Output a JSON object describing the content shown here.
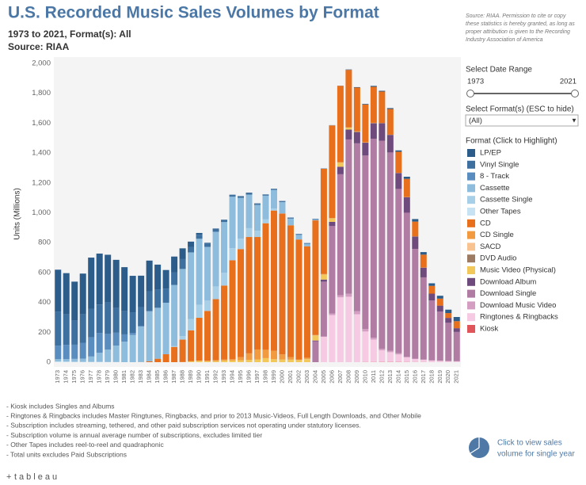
{
  "chart_data": {
    "type": "bar",
    "stacked": true,
    "title": "U.S. Recorded Music Sales Volumes by Format",
    "subtitle": [
      "1973 to 2021, Format(s): All",
      "Source: RIAA"
    ],
    "source_note": [
      "Source: RIAA. Permission to cite or copy",
      "these statistics is hereby granted, as long as",
      "proper attribution is given to the Recording",
      "Industry Association of America"
    ],
    "ylabel": "Units (Millions)",
    "ylim": [
      0,
      2000
    ],
    "yticks": [
      0,
      200,
      400,
      600,
      800,
      {
        "value": 1000,
        "label": "1,000"
      },
      {
        "value": 1200,
        "label": "1,200"
      },
      {
        "value": 1400,
        "label": "1,400"
      },
      {
        "value": 1600,
        "label": "1,600"
      },
      {
        "value": 1800,
        "label": "1,800"
      },
      {
        "value": 2000,
        "label": "2,000"
      }
    ],
    "grid": false,
    "categories": [
      "1973",
      "1974",
      "1975",
      "1976",
      "1977",
      "1978",
      "1979",
      "1980",
      "1981",
      "1982",
      "1983",
      "1984",
      "1985",
      "1986",
      "1987",
      "1988",
      "1989",
      "1990",
      "1991",
      "1992",
      "1993",
      "1994",
      "1995",
      "1996",
      "1997",
      "1998",
      "1999",
      "2000",
      "2001",
      "2002",
      "2003",
      "2004",
      "2005",
      "2006",
      "2007",
      "2008",
      "2009",
      "2010",
      "2011",
      "2012",
      "2013",
      "2014",
      "2015",
      "2016",
      "2017",
      "2018",
      "2019",
      "2020",
      "2021"
    ],
    "legend_title": "Format (Click to Highlight)",
    "series": [
      {
        "name": "LP/EP",
        "color": "#2b5c8a",
        "values": [
          280,
          276,
          258,
          273,
          344,
          341,
          318,
          323,
          295,
          244,
          210,
          205,
          167,
          125,
          107,
          72,
          35,
          12,
          5,
          2,
          1,
          2,
          2,
          3,
          3,
          3,
          3,
          2,
          2,
          2,
          1,
          1,
          1,
          1,
          1,
          3,
          3,
          4,
          6,
          5,
          6,
          9,
          14,
          17,
          17,
          17,
          19,
          23,
          28
        ]
      },
      {
        "name": "Vinyl Single",
        "color": "#3d6f9f",
        "values": [
          228,
          204,
          164,
          190,
          190,
          190,
          212,
          165,
          155,
          138,
          125,
          131,
          121,
          94,
          83,
          66,
          37,
          27,
          22,
          20,
          15,
          11,
          10,
          10,
          7,
          5,
          5,
          5,
          5,
          4,
          4,
          4,
          0,
          0,
          0,
          0,
          0,
          0,
          0,
          0,
          0,
          0,
          0,
          0,
          0,
          0,
          0,
          0,
          0
        ]
      },
      {
        "name": "8 - Track",
        "color": "#5a8dbf",
        "values": [
          91,
          96,
          95,
          106,
          128,
          133,
          105,
          86,
          49,
          14,
          6,
          6,
          3,
          0,
          0,
          0,
          0,
          0,
          0,
          0,
          0,
          0,
          0,
          0,
          0,
          0,
          0,
          0,
          0,
          0,
          0,
          0,
          0,
          0,
          0,
          0,
          0,
          0,
          0,
          0,
          0,
          0,
          0,
          0,
          0,
          0,
          0,
          0,
          0
        ]
      },
      {
        "name": "Cassette",
        "color": "#8ebcdc",
        "values": [
          15,
          16,
          19,
          22,
          36,
          61,
          83,
          110,
          137,
          182,
          237,
          332,
          339,
          345,
          410,
          450,
          446,
          442,
          360,
          366,
          340,
          345,
          273,
          225,
          173,
          159,
          124,
          76,
          45,
          31,
          17,
          5,
          2,
          1,
          0,
          0,
          0,
          0,
          0,
          0,
          0,
          0,
          0,
          0,
          0,
          0,
          0,
          0,
          0
        ]
      },
      {
        "name": "Cassette Single",
        "color": "#a8cfe8",
        "values": [
          0,
          0,
          0,
          0,
          0,
          0,
          0,
          0,
          0,
          0,
          0,
          0,
          0,
          0,
          5,
          23,
          76,
          87,
          69,
          85,
          85,
          81,
          70,
          59,
          42,
          26,
          14,
          1,
          0,
          0,
          0,
          0,
          0,
          0,
          0,
          0,
          0,
          0,
          0,
          0,
          0,
          0,
          0,
          0,
          0,
          0,
          0,
          0,
          0
        ]
      },
      {
        "name": "Other Tapes",
        "color": "#c7e2f2",
        "values": [
          5,
          4,
          3,
          2,
          2,
          2,
          1,
          1,
          0,
          0,
          0,
          0,
          0,
          0,
          0,
          0,
          0,
          0,
          0,
          0,
          0,
          0,
          0,
          0,
          0,
          0,
          0,
          0,
          0,
          0,
          0,
          0,
          0,
          0,
          0,
          0,
          0,
          0,
          0,
          0,
          0,
          0,
          0,
          0,
          0,
          0,
          0,
          0,
          0
        ]
      },
      {
        "name": "CD",
        "color": "#e8701c",
        "values": [
          0,
          0,
          0,
          0,
          0,
          0,
          0,
          0,
          0,
          0,
          1,
          6,
          23,
          53,
          102,
          150,
          207,
          287,
          333,
          408,
          495,
          662,
          723,
          779,
          753,
          847,
          939,
          943,
          882,
          803,
          746,
          767,
          705,
          620,
          511,
          385,
          293,
          253,
          241,
          211,
          172,
          141,
          122,
          99,
          86,
          52,
          47,
          32,
          47
        ]
      },
      {
        "name": "CD Single",
        "color": "#f29a3f",
        "values": [
          0,
          0,
          0,
          0,
          0,
          0,
          0,
          0,
          0,
          0,
          0,
          0,
          0,
          0,
          0,
          1,
          0,
          1,
          4,
          7,
          7,
          9,
          21,
          43,
          67,
          56,
          56,
          34,
          17,
          4,
          8,
          3,
          3,
          2,
          3,
          1,
          1,
          1,
          1,
          0,
          0,
          0,
          0,
          0,
          0,
          0,
          0,
          0,
          0
        ]
      },
      {
        "name": "SACD",
        "color": "#f8c391",
        "values": [
          0,
          0,
          0,
          0,
          0,
          0,
          0,
          0,
          0,
          0,
          0,
          0,
          0,
          0,
          0,
          0,
          0,
          0,
          0,
          0,
          0,
          0,
          0,
          0,
          0,
          0,
          0,
          0,
          0,
          0,
          1.3,
          0.8,
          0.5,
          0.3,
          0.2,
          0.2,
          0.1,
          0,
          0,
          0,
          0,
          0,
          0,
          0,
          0,
          0,
          0,
          0,
          0
        ]
      },
      {
        "name": "DVD Audio",
        "color": "#9c7b62",
        "values": [
          0,
          0,
          0,
          0,
          0,
          0,
          0,
          0,
          0,
          0,
          0,
          0,
          0,
          0,
          0,
          0,
          0,
          0,
          0,
          0,
          0,
          0,
          0,
          0,
          0,
          0,
          0,
          0,
          0.3,
          0.4,
          0.4,
          0.4,
          0.5,
          0.4,
          0.4,
          0.2,
          0.1,
          0,
          0,
          0,
          0,
          0,
          0,
          0,
          0,
          0,
          0,
          0,
          0
        ]
      },
      {
        "name": "Music Video (Physical)",
        "color": "#f2c85b",
        "values": [
          0,
          0,
          0,
          0,
          0,
          0,
          0,
          0,
          0,
          0,
          0,
          0,
          0,
          0,
          0,
          0,
          6,
          9,
          6,
          7,
          11,
          11,
          13,
          16,
          18,
          27,
          20,
          18,
          17,
          14,
          20,
          33,
          33,
          23,
          27,
          13,
          3,
          2,
          2,
          1,
          1,
          1,
          1,
          1,
          1,
          0,
          0,
          0,
          0
        ]
      },
      {
        "name": "Download Album",
        "color": "#6f4a7d",
        "values": [
          0,
          0,
          0,
          0,
          0,
          0,
          0,
          0,
          0,
          0,
          0,
          0,
          0,
          0,
          0,
          0,
          0,
          0,
          0,
          0,
          0,
          0,
          0,
          0,
          0,
          0,
          0,
          0,
          0,
          0,
          0,
          5,
          14,
          28,
          50,
          66,
          76,
          86,
          104,
          117,
          118,
          107,
          104,
          83,
          65,
          46,
          39,
          33,
          25
        ]
      },
      {
        "name": "Download Single",
        "color": "#b07ca3",
        "values": [
          0,
          0,
          0,
          0,
          0,
          0,
          0,
          0,
          0,
          0,
          0,
          0,
          0,
          0,
          0,
          0,
          0,
          0,
          0,
          0,
          0,
          0,
          0,
          0,
          0,
          0,
          0,
          0,
          0,
          0,
          0,
          140,
          367,
          586,
          810,
          1033,
          1124,
          1162,
          1332,
          1393,
          1327,
          1100,
          964,
          734,
          550,
          401,
          330,
          256,
          196
        ]
      },
      {
        "name": "Download Music Video",
        "color": "#d49dc2",
        "values": [
          0,
          0,
          0,
          0,
          0,
          0,
          0,
          0,
          0,
          0,
          0,
          0,
          0,
          0,
          0,
          0,
          0,
          0,
          0,
          0,
          0,
          0,
          0,
          0,
          0,
          0,
          0,
          0,
          0,
          0,
          0,
          0,
          2,
          10,
          14,
          20,
          20,
          16,
          12,
          10,
          10,
          8,
          5,
          3,
          2,
          1,
          1,
          1,
          1
        ]
      },
      {
        "name": "Ringtones & Ringbacks",
        "color": "#f5cae2",
        "values": [
          0,
          0,
          0,
          0,
          0,
          0,
          0,
          0,
          0,
          0,
          0,
          0,
          0,
          0,
          0,
          0,
          0,
          0,
          0,
          0,
          0,
          0,
          0,
          0,
          0,
          0,
          0,
          0,
          0,
          0,
          0,
          0,
          170,
          315,
          434,
          438,
          321,
          204,
          150,
          78,
          65,
          50,
          30,
          20,
          15,
          10,
          8,
          6,
          5
        ]
      },
      {
        "name": "Kiosk",
        "color": "#e05559",
        "values": [
          0,
          0,
          0,
          0,
          0,
          0,
          0,
          0,
          0,
          0,
          0,
          0,
          0,
          0,
          0,
          0,
          0,
          0,
          0,
          0,
          0,
          0,
          0,
          0,
          0,
          0,
          0,
          0,
          0,
          0,
          0,
          0,
          0,
          0,
          0,
          0,
          0,
          1.3,
          1.5,
          1.7,
          1.8,
          1.7,
          1.4,
          1.0,
          0.9,
          0.8,
          0.6,
          0.5,
          0.4
        ]
      }
    ],
    "filters": {
      "date_label": "Select Date Range",
      "date_start": "1973",
      "date_end": "2021",
      "format_label": "Select Format(s) (ESC to hide)",
      "format_value": "(All)"
    },
    "footnotes": [
      "- Kiosk includes Singles and Albums",
      "- Ringtones & Ringbacks includes Master Ringtunes, Ringbacks, and prior to 2013 Music-Videos, Full Length Downloads, and Other Mobile",
      "- Subscription includes streaming, tethered, and other paid subscription services not operating under statutory licenses.",
      "- Subscription volume is annual average number of subscriptions, excludes limited tier",
      "- Other Tapes includes reel-to-reel and quadraphonic",
      "- Total units excludes Paid Subscriptions"
    ],
    "single_year_link": [
      "Click to view sales",
      "volume for single year"
    ],
    "logo": "tableau"
  }
}
